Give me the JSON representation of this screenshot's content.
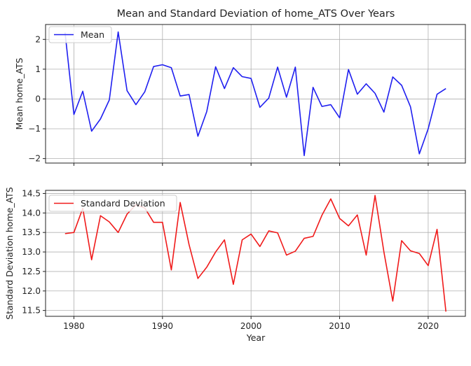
{
  "chart_data": [
    {
      "type": "line",
      "title": "Mean and Standard Deviation of home_ATS Over Years",
      "xlabel": "",
      "ylabel": "Mean home_ATS",
      "xlim": [
        1976.8,
        2024.2
      ],
      "ylim": [
        -2.15,
        2.5
      ],
      "xticks": [
        1980,
        1990,
        2000,
        2010,
        2020
      ],
      "xticklabels": [
        "",
        "",
        "",
        "",
        ""
      ],
      "yticks": [
        -2,
        -1,
        0,
        1,
        2
      ],
      "yticklabels": [
        "−2",
        "−1",
        "0",
        "1",
        "2"
      ],
      "grid": true,
      "legend": "upper left",
      "series": [
        {
          "name": "Mean",
          "color": "#1f1ff0",
          "x": [
            1979,
            1980,
            1981,
            1982,
            1983,
            1984,
            1985,
            1986,
            1987,
            1988,
            1989,
            1990,
            1991,
            1992,
            1993,
            1994,
            1995,
            1996,
            1997,
            1998,
            1999,
            2000,
            2001,
            2002,
            2003,
            2004,
            2005,
            2006,
            2007,
            2008,
            2009,
            2010,
            2011,
            2012,
            2013,
            2014,
            2015,
            2016,
            2017,
            2018,
            2019,
            2020,
            2021,
            2022
          ],
          "y": [
            2.23,
            -0.52,
            0.26,
            -1.08,
            -0.67,
            -0.03,
            2.25,
            0.28,
            -0.19,
            0.24,
            1.09,
            1.15,
            1.05,
            0.1,
            0.15,
            -1.25,
            -0.42,
            1.08,
            0.35,
            1.05,
            0.75,
            0.69,
            -0.28,
            0.03,
            1.07,
            0.06,
            1.07,
            -1.9,
            0.39,
            -0.25,
            -0.19,
            -0.63,
            0.99,
            0.16,
            0.51,
            0.19,
            -0.44,
            0.74,
            0.46,
            -0.26,
            -1.84,
            -1.0,
            0.16,
            0.35
          ]
        }
      ]
    },
    {
      "type": "line",
      "title": "",
      "xlabel": "Year",
      "ylabel": "Standard Deviation home_ATS",
      "xlim": [
        1976.8,
        2024.2
      ],
      "ylim": [
        11.35,
        14.58
      ],
      "xticks": [
        1980,
        1990,
        2000,
        2010,
        2020
      ],
      "xticklabels": [
        "1980",
        "1990",
        "2000",
        "2010",
        "2020"
      ],
      "yticks": [
        11.5,
        12.0,
        12.5,
        13.0,
        13.5,
        14.0,
        14.5
      ],
      "yticklabels": [
        "11.5",
        "12.0",
        "12.5",
        "13.0",
        "13.5",
        "14.0",
        "14.5"
      ],
      "grid": true,
      "legend": "upper left",
      "series": [
        {
          "name": "Standard Deviation",
          "color": "#f01a1a",
          "x": [
            1979,
            1980,
            1981,
            1982,
            1983,
            1984,
            1985,
            1986,
            1987,
            1988,
            1989,
            1990,
            1991,
            1992,
            1993,
            1994,
            1995,
            1996,
            1997,
            1998,
            1999,
            2000,
            2001,
            2002,
            2003,
            2004,
            2005,
            2006,
            2007,
            2008,
            2009,
            2010,
            2011,
            2012,
            2013,
            2014,
            2015,
            2016,
            2017,
            2018,
            2019,
            2020,
            2021,
            2022
          ],
          "y": [
            13.47,
            13.5,
            14.12,
            12.8,
            13.93,
            13.77,
            13.5,
            13.97,
            14.21,
            14.13,
            13.76,
            13.76,
            12.54,
            14.27,
            13.19,
            12.32,
            12.61,
            13.0,
            13.31,
            12.17,
            13.31,
            13.46,
            13.14,
            13.54,
            13.49,
            12.92,
            13.02,
            13.35,
            13.4,
            13.94,
            14.36,
            13.86,
            13.67,
            13.95,
            12.92,
            14.45,
            13.0,
            11.74,
            13.29,
            13.03,
            12.96,
            12.65,
            13.58,
            11.47
          ]
        }
      ]
    }
  ]
}
